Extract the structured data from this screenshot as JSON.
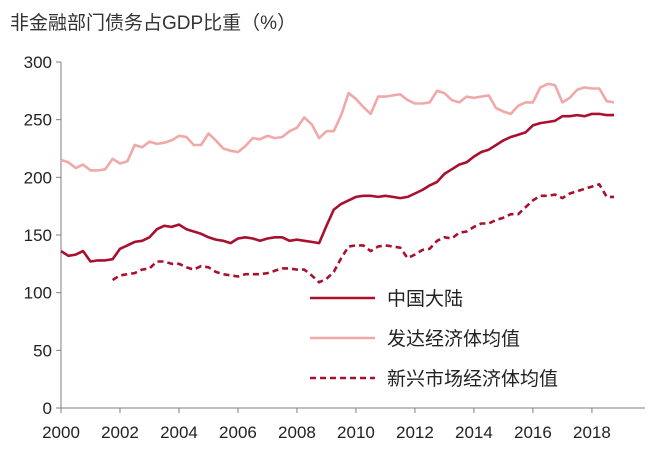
{
  "chart_data": {
    "type": "line",
    "title": "非金融部门债务占GDP比重（%）",
    "xlabel": "",
    "ylabel": "",
    "xlim": [
      2000,
      2019.8
    ],
    "ylim": [
      0,
      300
    ],
    "x_ticks": [
      "2000",
      "2002",
      "2004",
      "2006",
      "2008",
      "2010",
      "2012",
      "2014",
      "2016",
      "2018"
    ],
    "y_ticks": [
      "0",
      "50",
      "100",
      "150",
      "200",
      "250",
      "300"
    ],
    "grid": false,
    "legend": "center-right",
    "series": [
      {
        "name": "中国大陆",
        "color": "#a8102e",
        "style": "solid",
        "points": [
          [
            2000.0,
            136
          ],
          [
            2000.25,
            132
          ],
          [
            2000.5,
            133
          ],
          [
            2000.75,
            136
          ],
          [
            2001.0,
            127
          ],
          [
            2001.25,
            128
          ],
          [
            2001.5,
            128
          ],
          [
            2001.75,
            129
          ],
          [
            2002.0,
            138
          ],
          [
            2002.25,
            141
          ],
          [
            2002.5,
            144
          ],
          [
            2002.75,
            145
          ],
          [
            2003.0,
            148
          ],
          [
            2003.25,
            155
          ],
          [
            2003.5,
            158
          ],
          [
            2003.75,
            157
          ],
          [
            2004.0,
            159
          ],
          [
            2004.25,
            155
          ],
          [
            2004.5,
            153
          ],
          [
            2004.75,
            151
          ],
          [
            2005.0,
            148
          ],
          [
            2005.25,
            146
          ],
          [
            2005.5,
            145
          ],
          [
            2005.75,
            143
          ],
          [
            2006.0,
            147
          ],
          [
            2006.25,
            148
          ],
          [
            2006.5,
            147
          ],
          [
            2006.75,
            145
          ],
          [
            2007.0,
            147
          ],
          [
            2007.25,
            148
          ],
          [
            2007.5,
            148
          ],
          [
            2007.75,
            145
          ],
          [
            2008.0,
            146
          ],
          [
            2008.25,
            145
          ],
          [
            2008.5,
            144
          ],
          [
            2008.75,
            143
          ],
          [
            2009.0,
            158
          ],
          [
            2009.25,
            172
          ],
          [
            2009.5,
            177
          ],
          [
            2009.75,
            180
          ],
          [
            2010.0,
            183
          ],
          [
            2010.25,
            184
          ],
          [
            2010.5,
            184
          ],
          [
            2010.75,
            183
          ],
          [
            2011.0,
            184
          ],
          [
            2011.25,
            183
          ],
          [
            2011.5,
            182
          ],
          [
            2011.75,
            183
          ],
          [
            2012.0,
            186
          ],
          [
            2012.25,
            189
          ],
          [
            2012.5,
            193
          ],
          [
            2012.75,
            196
          ],
          [
            2013.0,
            203
          ],
          [
            2013.25,
            207
          ],
          [
            2013.5,
            211
          ],
          [
            2013.75,
            213
          ],
          [
            2014.0,
            218
          ],
          [
            2014.25,
            222
          ],
          [
            2014.5,
            224
          ],
          [
            2014.75,
            228
          ],
          [
            2015.0,
            232
          ],
          [
            2015.25,
            235
          ],
          [
            2015.5,
            237
          ],
          [
            2015.75,
            239
          ],
          [
            2016.0,
            245
          ],
          [
            2016.25,
            247
          ],
          [
            2016.5,
            248
          ],
          [
            2016.75,
            249
          ],
          [
            2017.0,
            253
          ],
          [
            2017.25,
            253
          ],
          [
            2017.5,
            254
          ],
          [
            2017.75,
            253
          ],
          [
            2018.0,
            255
          ],
          [
            2018.25,
            255
          ],
          [
            2018.5,
            254
          ],
          [
            2018.75,
            254
          ]
        ]
      },
      {
        "name": "发达经济体均值",
        "color": "#f0a8a8",
        "style": "solid",
        "points": [
          [
            2000.0,
            215
          ],
          [
            2000.25,
            213
          ],
          [
            2000.5,
            208
          ],
          [
            2000.75,
            211
          ],
          [
            2001.0,
            206
          ],
          [
            2001.25,
            206
          ],
          [
            2001.5,
            207
          ],
          [
            2001.75,
            216
          ],
          [
            2002.0,
            212
          ],
          [
            2002.25,
            214
          ],
          [
            2002.5,
            228
          ],
          [
            2002.75,
            226
          ],
          [
            2003.0,
            231
          ],
          [
            2003.25,
            229
          ],
          [
            2003.5,
            230
          ],
          [
            2003.75,
            232
          ],
          [
            2004.0,
            236
          ],
          [
            2004.25,
            235
          ],
          [
            2004.5,
            228
          ],
          [
            2004.75,
            228
          ],
          [
            2005.0,
            238
          ],
          [
            2005.25,
            232
          ],
          [
            2005.5,
            225
          ],
          [
            2005.75,
            223
          ],
          [
            2006.0,
            222
          ],
          [
            2006.25,
            227
          ],
          [
            2006.5,
            234
          ],
          [
            2006.75,
            233
          ],
          [
            2007.0,
            236
          ],
          [
            2007.25,
            234
          ],
          [
            2007.5,
            235
          ],
          [
            2007.75,
            240
          ],
          [
            2008.0,
            243
          ],
          [
            2008.25,
            252
          ],
          [
            2008.5,
            246
          ],
          [
            2008.75,
            234
          ],
          [
            2009.0,
            240
          ],
          [
            2009.25,
            240
          ],
          [
            2009.5,
            254
          ],
          [
            2009.75,
            273
          ],
          [
            2010.0,
            268
          ],
          [
            2010.25,
            261
          ],
          [
            2010.5,
            255
          ],
          [
            2010.75,
            270
          ],
          [
            2011.0,
            270
          ],
          [
            2011.25,
            271
          ],
          [
            2011.5,
            272
          ],
          [
            2011.75,
            267
          ],
          [
            2012.0,
            264
          ],
          [
            2012.25,
            264
          ],
          [
            2012.5,
            265
          ],
          [
            2012.75,
            275
          ],
          [
            2013.0,
            273
          ],
          [
            2013.25,
            267
          ],
          [
            2013.5,
            265
          ],
          [
            2013.75,
            270
          ],
          [
            2014.0,
            269
          ],
          [
            2014.25,
            270
          ],
          [
            2014.5,
            271
          ],
          [
            2014.75,
            260
          ],
          [
            2015.0,
            257
          ],
          [
            2015.25,
            255
          ],
          [
            2015.5,
            262
          ],
          [
            2015.75,
            265
          ],
          [
            2016.0,
            265
          ],
          [
            2016.25,
            278
          ],
          [
            2016.5,
            281
          ],
          [
            2016.75,
            280
          ],
          [
            2017.0,
            265
          ],
          [
            2017.25,
            269
          ],
          [
            2017.5,
            276
          ],
          [
            2017.75,
            278
          ],
          [
            2018.0,
            277
          ],
          [
            2018.25,
            277
          ],
          [
            2018.5,
            266
          ],
          [
            2018.75,
            265
          ]
        ]
      },
      {
        "name": "新兴市场经济体均值",
        "color": "#a8102e",
        "style": "dashed",
        "points": [
          [
            2001.75,
            111
          ],
          [
            2002.0,
            115
          ],
          [
            2002.25,
            116
          ],
          [
            2002.5,
            117
          ],
          [
            2002.75,
            120
          ],
          [
            2003.0,
            121
          ],
          [
            2003.25,
            127
          ],
          [
            2003.5,
            127
          ],
          [
            2003.75,
            125
          ],
          [
            2004.0,
            125
          ],
          [
            2004.25,
            122
          ],
          [
            2004.5,
            120
          ],
          [
            2004.75,
            123
          ],
          [
            2005.0,
            122
          ],
          [
            2005.25,
            118
          ],
          [
            2005.5,
            116
          ],
          [
            2005.75,
            115
          ],
          [
            2006.0,
            114
          ],
          [
            2006.25,
            116
          ],
          [
            2006.5,
            116
          ],
          [
            2006.75,
            116
          ],
          [
            2007.0,
            117
          ],
          [
            2007.25,
            119
          ],
          [
            2007.5,
            121
          ],
          [
            2007.75,
            121
          ],
          [
            2008.0,
            120
          ],
          [
            2008.25,
            120
          ],
          [
            2008.5,
            115
          ],
          [
            2008.75,
            109
          ],
          [
            2009.0,
            112
          ],
          [
            2009.25,
            118
          ],
          [
            2009.5,
            130
          ],
          [
            2009.75,
            140
          ],
          [
            2010.0,
            141
          ],
          [
            2010.25,
            141
          ],
          [
            2010.5,
            136
          ],
          [
            2010.75,
            140
          ],
          [
            2011.0,
            141
          ],
          [
            2011.25,
            140
          ],
          [
            2011.5,
            139
          ],
          [
            2011.75,
            130
          ],
          [
            2012.0,
            133
          ],
          [
            2012.25,
            137
          ],
          [
            2012.5,
            138
          ],
          [
            2012.75,
            145
          ],
          [
            2013.0,
            148
          ],
          [
            2013.25,
            147
          ],
          [
            2013.5,
            152
          ],
          [
            2013.75,
            153
          ],
          [
            2014.0,
            157
          ],
          [
            2014.25,
            160
          ],
          [
            2014.5,
            160
          ],
          [
            2014.75,
            163
          ],
          [
            2015.0,
            165
          ],
          [
            2015.25,
            168
          ],
          [
            2015.5,
            168
          ],
          [
            2015.75,
            174
          ],
          [
            2016.0,
            180
          ],
          [
            2016.25,
            184
          ],
          [
            2016.5,
            184
          ],
          [
            2016.75,
            185
          ],
          [
            2017.0,
            182
          ],
          [
            2017.25,
            186
          ],
          [
            2017.5,
            188
          ],
          [
            2017.75,
            190
          ],
          [
            2018.0,
            192
          ],
          [
            2018.25,
            194
          ],
          [
            2018.5,
            183
          ],
          [
            2018.75,
            183
          ]
        ]
      }
    ]
  }
}
